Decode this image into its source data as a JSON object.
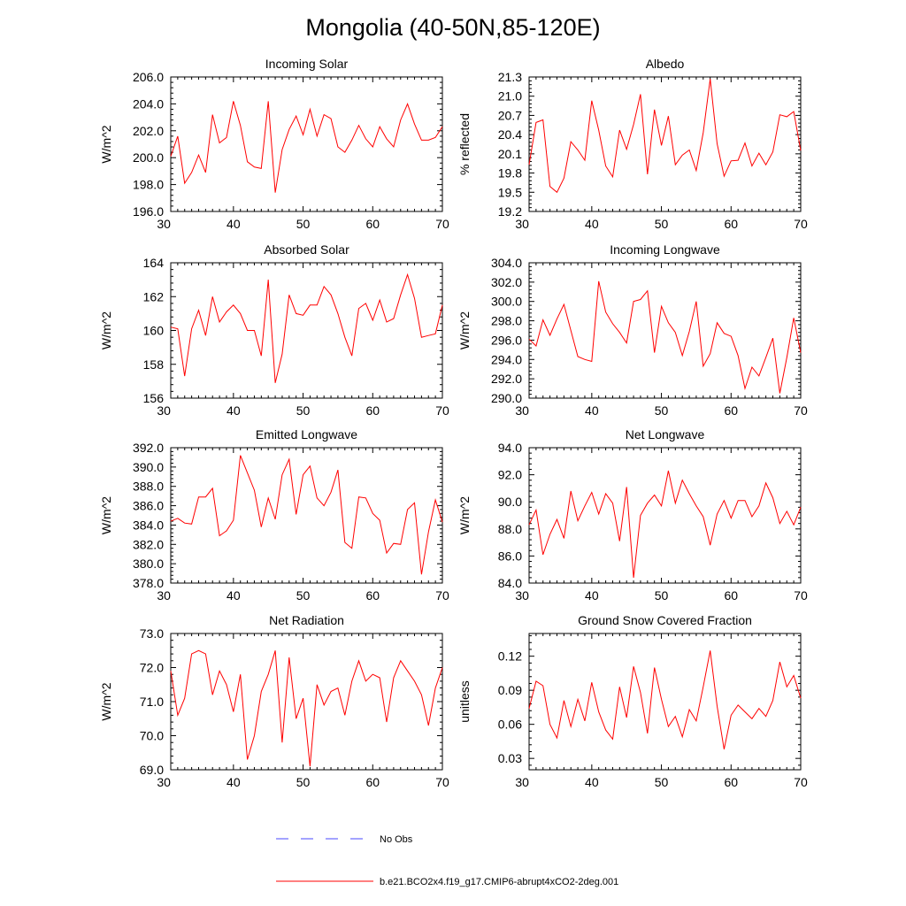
{
  "figure": {
    "title": "Mongolia (40-50N,85-120E)",
    "legend": [
      {
        "label": "No Obs",
        "style": "dashed",
        "color": "#4a4aff"
      },
      {
        "label": "b.e21.BCO2x4.f19_g17.CMIP6-abrupt4xCO2-2deg.001",
        "style": "solid",
        "color": "#ff0000"
      }
    ]
  },
  "chart_data": [
    {
      "type": "line",
      "title": "Incoming Solar",
      "xlabel": "",
      "ylabel": "W/m^2",
      "xlim": [
        31,
        70
      ],
      "xticks": [
        30,
        40,
        50,
        60,
        70
      ],
      "ylim": [
        196,
        206
      ],
      "yticks": [
        196,
        198,
        200,
        202,
        204,
        206
      ],
      "ytick_labels": [
        "196.0",
        "198.0",
        "200.0",
        "202.0",
        "204.0",
        "206.0"
      ],
      "color": "#ff0000",
      "x": [
        31,
        32,
        33,
        34,
        35,
        36,
        37,
        38,
        39,
        40,
        41,
        42,
        43,
        44,
        45,
        46,
        47,
        48,
        49,
        50,
        51,
        52,
        53,
        54,
        55,
        56,
        57,
        58,
        59,
        60,
        61,
        62,
        63,
        64,
        65,
        66,
        67,
        68,
        69,
        70
      ],
      "values": [
        200.1,
        201.6,
        198.1,
        198.9,
        200.2,
        198.9,
        203.2,
        201.1,
        201.5,
        204.2,
        202.4,
        199.7,
        199.3,
        199.2,
        204.2,
        197.4,
        200.6,
        202.1,
        203.1,
        201.7,
        203.6,
        201.6,
        203.2,
        202.9,
        200.8,
        200.4,
        201.3,
        202.4,
        201.4,
        200.8,
        202.3,
        201.4,
        200.8,
        202.8,
        204.0,
        202.5,
        201.3,
        201.3,
        201.5,
        202.3
      ]
    },
    {
      "type": "line",
      "title": "Albedo",
      "xlabel": "",
      "ylabel": "% reflected",
      "xlim": [
        31,
        70
      ],
      "xticks": [
        30,
        40,
        50,
        60,
        70
      ],
      "ylim": [
        19.2,
        21.3
      ],
      "yticks": [
        19.2,
        19.5,
        19.8,
        20.1,
        20.4,
        20.7,
        21.0,
        21.3
      ],
      "ytick_labels": [
        "19.2",
        "19.5",
        "19.8",
        "20.1",
        "20.4",
        "20.7",
        "21.0",
        "21.3"
      ],
      "color": "#ff0000",
      "x": [
        31,
        32,
        33,
        34,
        35,
        36,
        37,
        38,
        39,
        40,
        41,
        42,
        43,
        44,
        45,
        46,
        47,
        48,
        49,
        50,
        51,
        52,
        53,
        54,
        55,
        56,
        57,
        58,
        59,
        60,
        61,
        62,
        63,
        64,
        65,
        66,
        67,
        68,
        69,
        70
      ],
      "values": [
        19.93,
        20.59,
        20.63,
        19.59,
        19.5,
        19.72,
        20.29,
        20.16,
        20.0,
        20.93,
        20.47,
        19.91,
        19.74,
        20.47,
        20.17,
        20.56,
        21.03,
        19.78,
        20.79,
        20.23,
        20.69,
        19.93,
        20.08,
        20.16,
        19.84,
        20.43,
        21.27,
        20.26,
        19.75,
        19.99,
        20.0,
        20.27,
        19.91,
        20.11,
        19.93,
        20.13,
        20.71,
        20.68,
        20.76,
        20.15
      ]
    },
    {
      "type": "line",
      "title": "Absorbed Solar",
      "xlabel": "",
      "ylabel": "W/m^2",
      "xlim": [
        31,
        70
      ],
      "xticks": [
        30,
        40,
        50,
        60,
        70
      ],
      "ylim": [
        156,
        164
      ],
      "yticks": [
        156,
        158,
        160,
        162,
        164
      ],
      "ytick_labels": [
        "156",
        "158",
        "160",
        "162",
        "164"
      ],
      "color": "#ff0000",
      "x": [
        31,
        32,
        33,
        34,
        35,
        36,
        37,
        38,
        39,
        40,
        41,
        42,
        43,
        44,
        45,
        46,
        47,
        48,
        49,
        50,
        51,
        52,
        53,
        54,
        55,
        56,
        57,
        58,
        59,
        60,
        61,
        62,
        63,
        64,
        65,
        66,
        67,
        68,
        69,
        70
      ],
      "values": [
        160.2,
        160.1,
        157.3,
        160.1,
        161.2,
        159.7,
        162.0,
        160.5,
        161.1,
        161.5,
        161.0,
        160.0,
        160.0,
        158.5,
        163.0,
        156.9,
        158.6,
        162.1,
        161.0,
        160.9,
        161.5,
        161.5,
        162.6,
        162.1,
        161.0,
        159.6,
        158.5,
        161.3,
        161.6,
        160.6,
        161.8,
        160.5,
        160.7,
        162.1,
        163.3,
        161.9,
        159.6,
        159.7,
        159.8,
        161.5
      ]
    },
    {
      "type": "line",
      "title": "Incoming Longwave",
      "xlabel": "",
      "ylabel": "W/m^2",
      "xlim": [
        31,
        70
      ],
      "xticks": [
        30,
        40,
        50,
        60,
        70
      ],
      "ylim": [
        290,
        304
      ],
      "yticks": [
        290,
        292,
        294,
        296,
        298,
        300,
        302,
        304
      ],
      "ytick_labels": [
        "290.0",
        "292.0",
        "294.0",
        "296.0",
        "298.0",
        "300.0",
        "302.0",
        "304.0"
      ],
      "color": "#ff0000",
      "x": [
        31,
        32,
        33,
        34,
        35,
        36,
        37,
        38,
        39,
        40,
        41,
        42,
        43,
        44,
        45,
        46,
        47,
        48,
        49,
        50,
        51,
        52,
        53,
        54,
        55,
        56,
        57,
        58,
        59,
        60,
        61,
        62,
        63,
        64,
        65,
        66,
        67,
        68,
        69,
        70
      ],
      "values": [
        296.1,
        295.4,
        298.1,
        296.5,
        298.2,
        299.7,
        297.0,
        294.3,
        294.0,
        293.8,
        302.1,
        298.9,
        297.7,
        296.8,
        295.7,
        300.0,
        300.2,
        301.1,
        294.7,
        299.5,
        297.8,
        296.8,
        294.4,
        296.9,
        300.0,
        293.3,
        294.6,
        297.8,
        296.7,
        296.4,
        294.4,
        291.0,
        293.2,
        292.3,
        294.2,
        296.2,
        290.5,
        294.2,
        298.3,
        294.7
      ]
    },
    {
      "type": "line",
      "title": "Emitted Longwave",
      "xlabel": "",
      "ylabel": "W/m^2",
      "xlim": [
        31,
        70
      ],
      "xticks": [
        30,
        40,
        50,
        60,
        70
      ],
      "ylim": [
        378,
        392
      ],
      "yticks": [
        378,
        380,
        382,
        384,
        386,
        388,
        390,
        392
      ],
      "ytick_labels": [
        "378.0",
        "380.0",
        "382.0",
        "384.0",
        "386.0",
        "388.0",
        "390.0",
        "392.0"
      ],
      "color": "#ff0000",
      "x": [
        31,
        32,
        33,
        34,
        35,
        36,
        37,
        38,
        39,
        40,
        41,
        42,
        43,
        44,
        45,
        46,
        47,
        48,
        49,
        50,
        51,
        52,
        53,
        54,
        55,
        56,
        57,
        58,
        59,
        60,
        61,
        62,
        63,
        64,
        65,
        66,
        67,
        68,
        69,
        70
      ],
      "values": [
        384.4,
        384.7,
        384.2,
        384.1,
        386.9,
        386.9,
        387.8,
        382.9,
        383.4,
        384.5,
        391.2,
        389.4,
        387.6,
        383.8,
        386.8,
        384.6,
        389.2,
        390.8,
        385.1,
        389.2,
        390.1,
        386.8,
        386.0,
        387.4,
        389.7,
        382.2,
        381.6,
        386.9,
        386.8,
        385.2,
        384.5,
        381.1,
        382.1,
        382.0,
        385.6,
        386.3,
        378.9,
        383.3,
        386.6,
        384.3
      ]
    },
    {
      "type": "line",
      "title": "Net Longwave",
      "xlabel": "",
      "ylabel": "W/m^2",
      "xlim": [
        31,
        70
      ],
      "xticks": [
        30,
        40,
        50,
        60,
        70
      ],
      "ylim": [
        84,
        94
      ],
      "yticks": [
        84,
        86,
        88,
        90,
        92,
        94
      ],
      "ytick_labels": [
        "84.0",
        "86.0",
        "88.0",
        "90.0",
        "92.0",
        "94.0"
      ],
      "color": "#ff0000",
      "x": [
        31,
        32,
        33,
        34,
        35,
        36,
        37,
        38,
        39,
        40,
        41,
        42,
        43,
        44,
        45,
        46,
        47,
        48,
        49,
        50,
        51,
        52,
        53,
        54,
        55,
        56,
        57,
        58,
        59,
        60,
        61,
        62,
        63,
        64,
        65,
        66,
        67,
        68,
        69,
        70
      ],
      "values": [
        88.3,
        89.4,
        86.1,
        87.6,
        88.7,
        87.3,
        90.8,
        88.6,
        89.7,
        90.7,
        89.1,
        90.6,
        89.9,
        87.1,
        91.1,
        84.4,
        89.0,
        89.9,
        90.5,
        89.7,
        92.3,
        89.9,
        91.6,
        90.6,
        89.7,
        88.9,
        86.8,
        89.1,
        90.1,
        88.8,
        90.1,
        90.1,
        88.9,
        89.7,
        91.4,
        90.3,
        88.4,
        89.3,
        88.3,
        89.6
      ]
    },
    {
      "type": "line",
      "title": "Net Radiation",
      "xlabel": "",
      "ylabel": "W/m^2",
      "xlim": [
        31,
        70
      ],
      "xticks": [
        30,
        40,
        50,
        60,
        70
      ],
      "ylim": [
        69,
        73
      ],
      "yticks": [
        69,
        70,
        71,
        72,
        73
      ],
      "ytick_labels": [
        "69.0",
        "70.0",
        "71.0",
        "72.0",
        "73.0"
      ],
      "color": "#ff0000",
      "x": [
        31,
        32,
        33,
        34,
        35,
        36,
        37,
        38,
        39,
        40,
        41,
        42,
        43,
        44,
        45,
        46,
        47,
        48,
        49,
        50,
        51,
        52,
        53,
        54,
        55,
        56,
        57,
        58,
        59,
        60,
        61,
        62,
        63,
        64,
        65,
        66,
        67,
        68,
        69,
        70
      ],
      "values": [
        71.9,
        70.6,
        71.1,
        72.4,
        72.5,
        72.4,
        71.2,
        71.9,
        71.5,
        70.7,
        71.8,
        69.3,
        70.0,
        71.3,
        71.8,
        72.5,
        69.8,
        72.3,
        70.5,
        71.1,
        69.1,
        71.5,
        70.9,
        71.3,
        71.4,
        70.6,
        71.6,
        72.2,
        71.6,
        71.8,
        71.7,
        70.4,
        71.7,
        72.2,
        71.9,
        71.6,
        71.2,
        70.3,
        71.4,
        72.0
      ]
    },
    {
      "type": "line",
      "title": "Ground Snow Covered Fraction",
      "xlabel": "",
      "ylabel": "unitless",
      "xlim": [
        31,
        70
      ],
      "xticks": [
        30,
        40,
        50,
        60,
        70
      ],
      "ylim": [
        0.02,
        0.14
      ],
      "yticks": [
        0.03,
        0.06,
        0.09,
        0.12
      ],
      "ytick_labels": [
        "0.03",
        "0.06",
        "0.09",
        "0.12"
      ],
      "color": "#ff0000",
      "x": [
        31,
        32,
        33,
        34,
        35,
        36,
        37,
        38,
        39,
        40,
        41,
        42,
        43,
        44,
        45,
        46,
        47,
        48,
        49,
        50,
        51,
        52,
        53,
        54,
        55,
        56,
        57,
        58,
        59,
        60,
        61,
        62,
        63,
        64,
        65,
        66,
        67,
        68,
        69,
        70
      ],
      "values": [
        0.074,
        0.098,
        0.094,
        0.06,
        0.048,
        0.081,
        0.058,
        0.082,
        0.063,
        0.097,
        0.071,
        0.055,
        0.047,
        0.093,
        0.066,
        0.111,
        0.088,
        0.052,
        0.11,
        0.082,
        0.058,
        0.067,
        0.049,
        0.073,
        0.063,
        0.093,
        0.125,
        0.076,
        0.038,
        0.068,
        0.077,
        0.071,
        0.065,
        0.074,
        0.067,
        0.081,
        0.115,
        0.093,
        0.103,
        0.083
      ]
    }
  ]
}
